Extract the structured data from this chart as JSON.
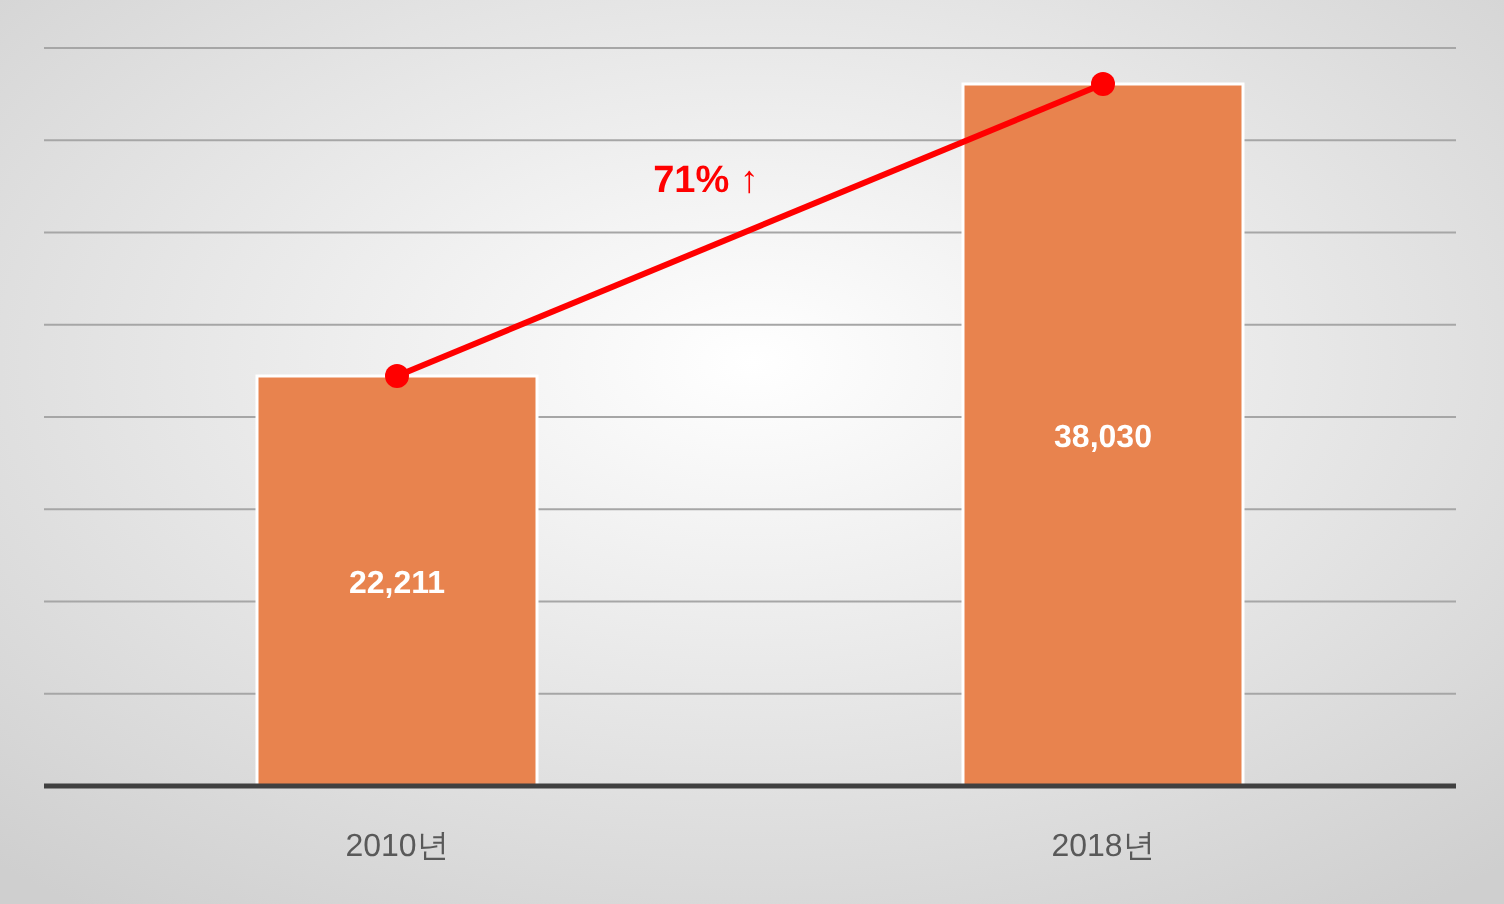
{
  "chart_data": {
    "type": "bar",
    "categories": [
      "2010년",
      "2018년"
    ],
    "series": [
      {
        "color": "#e8834e",
        "values": [
          22211,
          38030
        ],
        "value_labels": [
          "22,211",
          "38,030"
        ]
      },
      {
        "type": "line",
        "color": "#ff0000",
        "values": [
          22211,
          38030
        ],
        "marker": "circle",
        "line_style": "solid"
      }
    ],
    "tick_labels": "x",
    "grid": "y",
    "annotations": [
      "71% ↑"
    ]
  }
}
